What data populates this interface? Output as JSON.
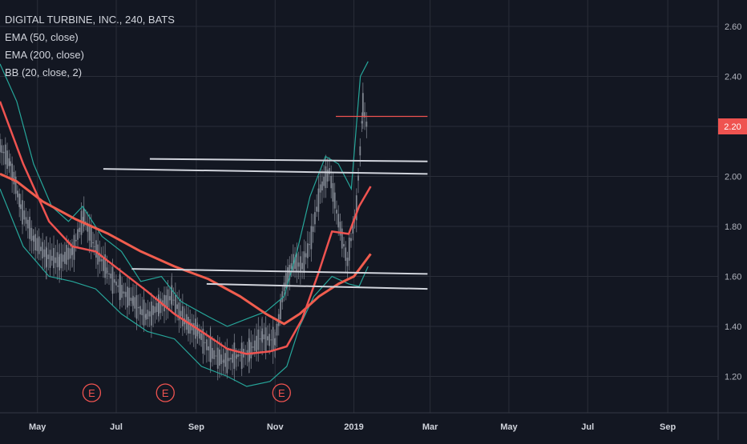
{
  "legend": {
    "title": "DIGITAL TURBINE, INC., 240, BATS",
    "ema50": "EMA (50, close)",
    "ema200": "EMA (200, close)",
    "bb": "BB (20, close, 2)"
  },
  "colors": {
    "background": "#131722",
    "grid": "#2a2e39",
    "candle": "#8a8f9a",
    "ema50": "#ef5350",
    "ema200": "#f05d4e",
    "bb": "#26a69a",
    "support": "#d1d4dc",
    "resistance": "#ef5350",
    "price_badge": "#ef5350"
  },
  "price_badge": "2.20",
  "earnings_marker": "E",
  "chart_data": {
    "type": "line",
    "title": "DIGITAL TURBINE, INC., 240, BATS",
    "ylim": [
      1.08,
      2.68
    ],
    "y_ticks": [
      "2.60",
      "2.40",
      "2.20",
      "2.00",
      "1.80",
      "1.60",
      "1.40",
      "1.20"
    ],
    "x_ticks": [
      {
        "label": "May",
        "x": "2018-05-01"
      },
      {
        "label": "Jul",
        "x": "2018-07-01"
      },
      {
        "label": "Sep",
        "x": "2018-09-01"
      },
      {
        "label": "Nov",
        "x": "2018-11-01"
      },
      {
        "label": "2019",
        "x": "2019-01-01"
      },
      {
        "label": "Mar",
        "x": "2019-03-01"
      },
      {
        "label": "May",
        "x": "2019-05-01"
      },
      {
        "label": "Jul",
        "x": "2019-07-01"
      },
      {
        "label": "Sep",
        "x": "2019-09-01"
      }
    ],
    "xlim": [
      "2018-04-02",
      "2019-10-10"
    ],
    "grid": true,
    "earnings_dates": [
      "2018-06-12",
      "2018-08-08",
      "2018-11-06"
    ],
    "series": [
      {
        "name": "EMA (50, close)",
        "points": [
          [
            "2018-04-02",
            2.3
          ],
          [
            "2018-04-20",
            2.05
          ],
          [
            "2018-05-10",
            1.82
          ],
          [
            "2018-05-28",
            1.72
          ],
          [
            "2018-06-15",
            1.7
          ],
          [
            "2018-07-05",
            1.62
          ],
          [
            "2018-07-25",
            1.54
          ],
          [
            "2018-08-15",
            1.45
          ],
          [
            "2018-09-05",
            1.38
          ],
          [
            "2018-09-25",
            1.31
          ],
          [
            "2018-10-10",
            1.29
          ],
          [
            "2018-10-28",
            1.3
          ],
          [
            "2018-11-10",
            1.32
          ],
          [
            "2018-11-22",
            1.43
          ],
          [
            "2018-12-05",
            1.62
          ],
          [
            "2018-12-15",
            1.78
          ],
          [
            "2018-12-28",
            1.77
          ],
          [
            "2019-01-05",
            1.88
          ],
          [
            "2019-01-14",
            1.96
          ]
        ]
      },
      {
        "name": "EMA (200, close)",
        "points": [
          [
            "2018-04-02",
            2.01
          ],
          [
            "2018-04-15",
            1.98
          ],
          [
            "2018-05-05",
            1.9
          ],
          [
            "2018-05-30",
            1.83
          ],
          [
            "2018-06-25",
            1.77
          ],
          [
            "2018-07-20",
            1.7
          ],
          [
            "2018-08-15",
            1.64
          ],
          [
            "2018-09-10",
            1.59
          ],
          [
            "2018-10-05",
            1.52
          ],
          [
            "2018-10-25",
            1.45
          ],
          [
            "2018-11-08",
            1.41
          ],
          [
            "2018-11-20",
            1.45
          ],
          [
            "2018-12-05",
            1.52
          ],
          [
            "2018-12-20",
            1.57
          ],
          [
            "2019-01-01",
            1.6
          ],
          [
            "2019-01-14",
            1.69
          ]
        ]
      },
      {
        "name": "BB upper",
        "points": [
          [
            "2018-04-02",
            2.45
          ],
          [
            "2018-04-15",
            2.3
          ],
          [
            "2018-04-28",
            2.05
          ],
          [
            "2018-05-12",
            1.88
          ],
          [
            "2018-05-25",
            1.82
          ],
          [
            "2018-06-05",
            1.88
          ],
          [
            "2018-06-20",
            1.76
          ],
          [
            "2018-07-05",
            1.7
          ],
          [
            "2018-07-20",
            1.58
          ],
          [
            "2018-08-05",
            1.6
          ],
          [
            "2018-08-20",
            1.5
          ],
          [
            "2018-09-10",
            1.44
          ],
          [
            "2018-09-25",
            1.4
          ],
          [
            "2018-10-10",
            1.43
          ],
          [
            "2018-10-25",
            1.46
          ],
          [
            "2018-11-08",
            1.52
          ],
          [
            "2018-11-18",
            1.7
          ],
          [
            "2018-11-28",
            1.92
          ],
          [
            "2018-12-10",
            2.08
          ],
          [
            "2018-12-20",
            2.05
          ],
          [
            "2018-12-30",
            1.95
          ],
          [
            "2019-01-06",
            2.4
          ],
          [
            "2019-01-12",
            2.46
          ]
        ]
      },
      {
        "name": "BB lower",
        "points": [
          [
            "2018-04-02",
            1.95
          ],
          [
            "2018-04-20",
            1.72
          ],
          [
            "2018-05-10",
            1.6
          ],
          [
            "2018-05-28",
            1.58
          ],
          [
            "2018-06-15",
            1.55
          ],
          [
            "2018-07-05",
            1.45
          ],
          [
            "2018-07-25",
            1.38
          ],
          [
            "2018-08-15",
            1.35
          ],
          [
            "2018-09-05",
            1.24
          ],
          [
            "2018-09-25",
            1.2
          ],
          [
            "2018-10-10",
            1.16
          ],
          [
            "2018-10-28",
            1.18
          ],
          [
            "2018-11-10",
            1.24
          ],
          [
            "2018-11-20",
            1.4
          ],
          [
            "2018-12-01",
            1.52
          ],
          [
            "2018-12-15",
            1.6
          ],
          [
            "2018-12-28",
            1.57
          ],
          [
            "2019-01-05",
            1.56
          ],
          [
            "2019-01-12",
            1.64
          ]
        ]
      },
      {
        "name": "Close",
        "points": [
          [
            "2018-04-02",
            2.12
          ],
          [
            "2018-04-10",
            2.05
          ],
          [
            "2018-04-18",
            1.88
          ],
          [
            "2018-04-28",
            1.75
          ],
          [
            "2018-05-08",
            1.68
          ],
          [
            "2018-05-18",
            1.66
          ],
          [
            "2018-05-28",
            1.7
          ],
          [
            "2018-06-06",
            1.84
          ],
          [
            "2018-06-14",
            1.72
          ],
          [
            "2018-06-24",
            1.62
          ],
          [
            "2018-07-04",
            1.55
          ],
          [
            "2018-07-14",
            1.5
          ],
          [
            "2018-07-24",
            1.44
          ],
          [
            "2018-08-03",
            1.48
          ],
          [
            "2018-08-13",
            1.52
          ],
          [
            "2018-08-23",
            1.42
          ],
          [
            "2018-09-02",
            1.38
          ],
          [
            "2018-09-12",
            1.3
          ],
          [
            "2018-09-22",
            1.26
          ],
          [
            "2018-10-02",
            1.28
          ],
          [
            "2018-10-12",
            1.3
          ],
          [
            "2018-10-22",
            1.36
          ],
          [
            "2018-11-01",
            1.34
          ],
          [
            "2018-11-08",
            1.56
          ],
          [
            "2018-11-15",
            1.66
          ],
          [
            "2018-11-22",
            1.64
          ],
          [
            "2018-11-29",
            1.75
          ],
          [
            "2018-12-06",
            1.95
          ],
          [
            "2018-12-13",
            2.02
          ],
          [
            "2018-12-20",
            1.82
          ],
          [
            "2018-12-27",
            1.66
          ],
          [
            "2019-01-03",
            1.88
          ],
          [
            "2019-01-08",
            2.28
          ],
          [
            "2019-01-12",
            2.18
          ]
        ]
      }
    ],
    "horizontal_lines": [
      {
        "start": [
          "2018-07-27",
          2.07
        ],
        "end": [
          "2019-02-27",
          2.06
        ]
      },
      {
        "start": [
          "2018-06-21",
          2.03
        ],
        "end": [
          "2019-02-27",
          2.01
        ]
      },
      {
        "start": [
          "2018-07-13",
          1.63
        ],
        "end": [
          "2019-02-27",
          1.61
        ]
      },
      {
        "start": [
          "2018-09-09",
          1.57
        ],
        "end": [
          "2019-02-27",
          1.55
        ]
      },
      {
        "start": [
          "2018-12-18",
          2.24
        ],
        "end": [
          "2019-02-27",
          2.24
        ]
      }
    ]
  }
}
